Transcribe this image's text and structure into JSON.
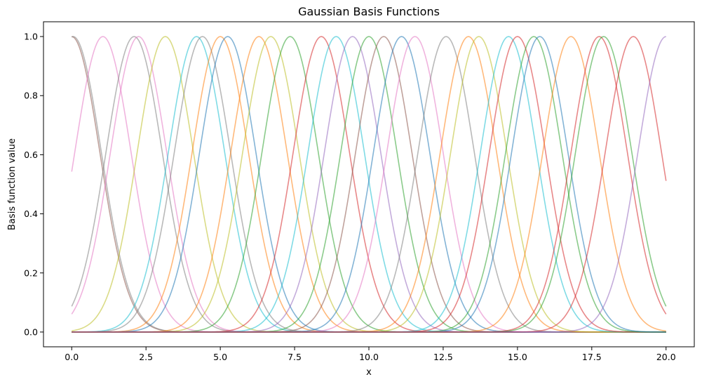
{
  "chart_data": {
    "type": "line",
    "title": "Gaussian Basis Functions",
    "xlabel": "x",
    "ylabel": "Basis function value",
    "xlim": [
      -0.95,
      20.95
    ],
    "ylim": [
      -0.05,
      1.05
    ],
    "x_ticks": [
      0.0,
      2.5,
      5.0,
      7.5,
      10.0,
      12.5,
      15.0,
      17.5,
      20.0
    ],
    "x_tick_labels": [
      "0.0",
      "2.5",
      "5.0",
      "7.5",
      "10.0",
      "12.5",
      "15.0",
      "17.5",
      "20.0"
    ],
    "y_ticks": [
      0.0,
      0.2,
      0.4,
      0.6,
      0.8,
      1.0
    ],
    "y_tick_labels": [
      "0.0",
      "0.2",
      "0.4",
      "0.6",
      "0.8",
      "1.0"
    ],
    "grid": false,
    "legend": "none",
    "x_range": [
      0,
      20
    ],
    "basis_width": 0.95,
    "series": [
      {
        "center": 0.0,
        "color": "#8c564b"
      },
      {
        "center": 0.05,
        "color": "#7f7f7f"
      },
      {
        "center": 1.05,
        "color": "#e377c2"
      },
      {
        "center": 2.1,
        "color": "#7f7f7f"
      },
      {
        "center": 2.25,
        "color": "#e377c2"
      },
      {
        "center": 3.15,
        "color": "#bcbd22"
      },
      {
        "center": 4.2,
        "color": "#17becf"
      },
      {
        "center": 4.4,
        "color": "#7f7f7f"
      },
      {
        "center": 5.0,
        "color": "#ff7f0e"
      },
      {
        "center": 5.25,
        "color": "#1f77b4"
      },
      {
        "center": 6.3,
        "color": "#ff7f0e"
      },
      {
        "center": 6.7,
        "color": "#bcbd22"
      },
      {
        "center": 7.35,
        "color": "#2ca02c"
      },
      {
        "center": 8.4,
        "color": "#d62728"
      },
      {
        "center": 8.9,
        "color": "#17becf"
      },
      {
        "center": 9.45,
        "color": "#9467bd"
      },
      {
        "center": 10.0,
        "color": "#2ca02c"
      },
      {
        "center": 10.5,
        "color": "#8c564b"
      },
      {
        "center": 11.1,
        "color": "#1f77b4"
      },
      {
        "center": 11.55,
        "color": "#e377c2"
      },
      {
        "center": 12.6,
        "color": "#7f7f7f"
      },
      {
        "center": 13.35,
        "color": "#ff7f0e"
      },
      {
        "center": 13.7,
        "color": "#bcbd22"
      },
      {
        "center": 14.7,
        "color": "#17becf"
      },
      {
        "center": 15.0,
        "color": "#d62728"
      },
      {
        "center": 15.55,
        "color": "#2ca02c"
      },
      {
        "center": 15.75,
        "color": "#1f77b4"
      },
      {
        "center": 16.8,
        "color": "#ff7f0e"
      },
      {
        "center": 17.75,
        "color": "#d62728"
      },
      {
        "center": 17.9,
        "color": "#2ca02c"
      },
      {
        "center": 18.9,
        "color": "#d62728"
      },
      {
        "center": 20.0,
        "color": "#9467bd"
      }
    ]
  }
}
